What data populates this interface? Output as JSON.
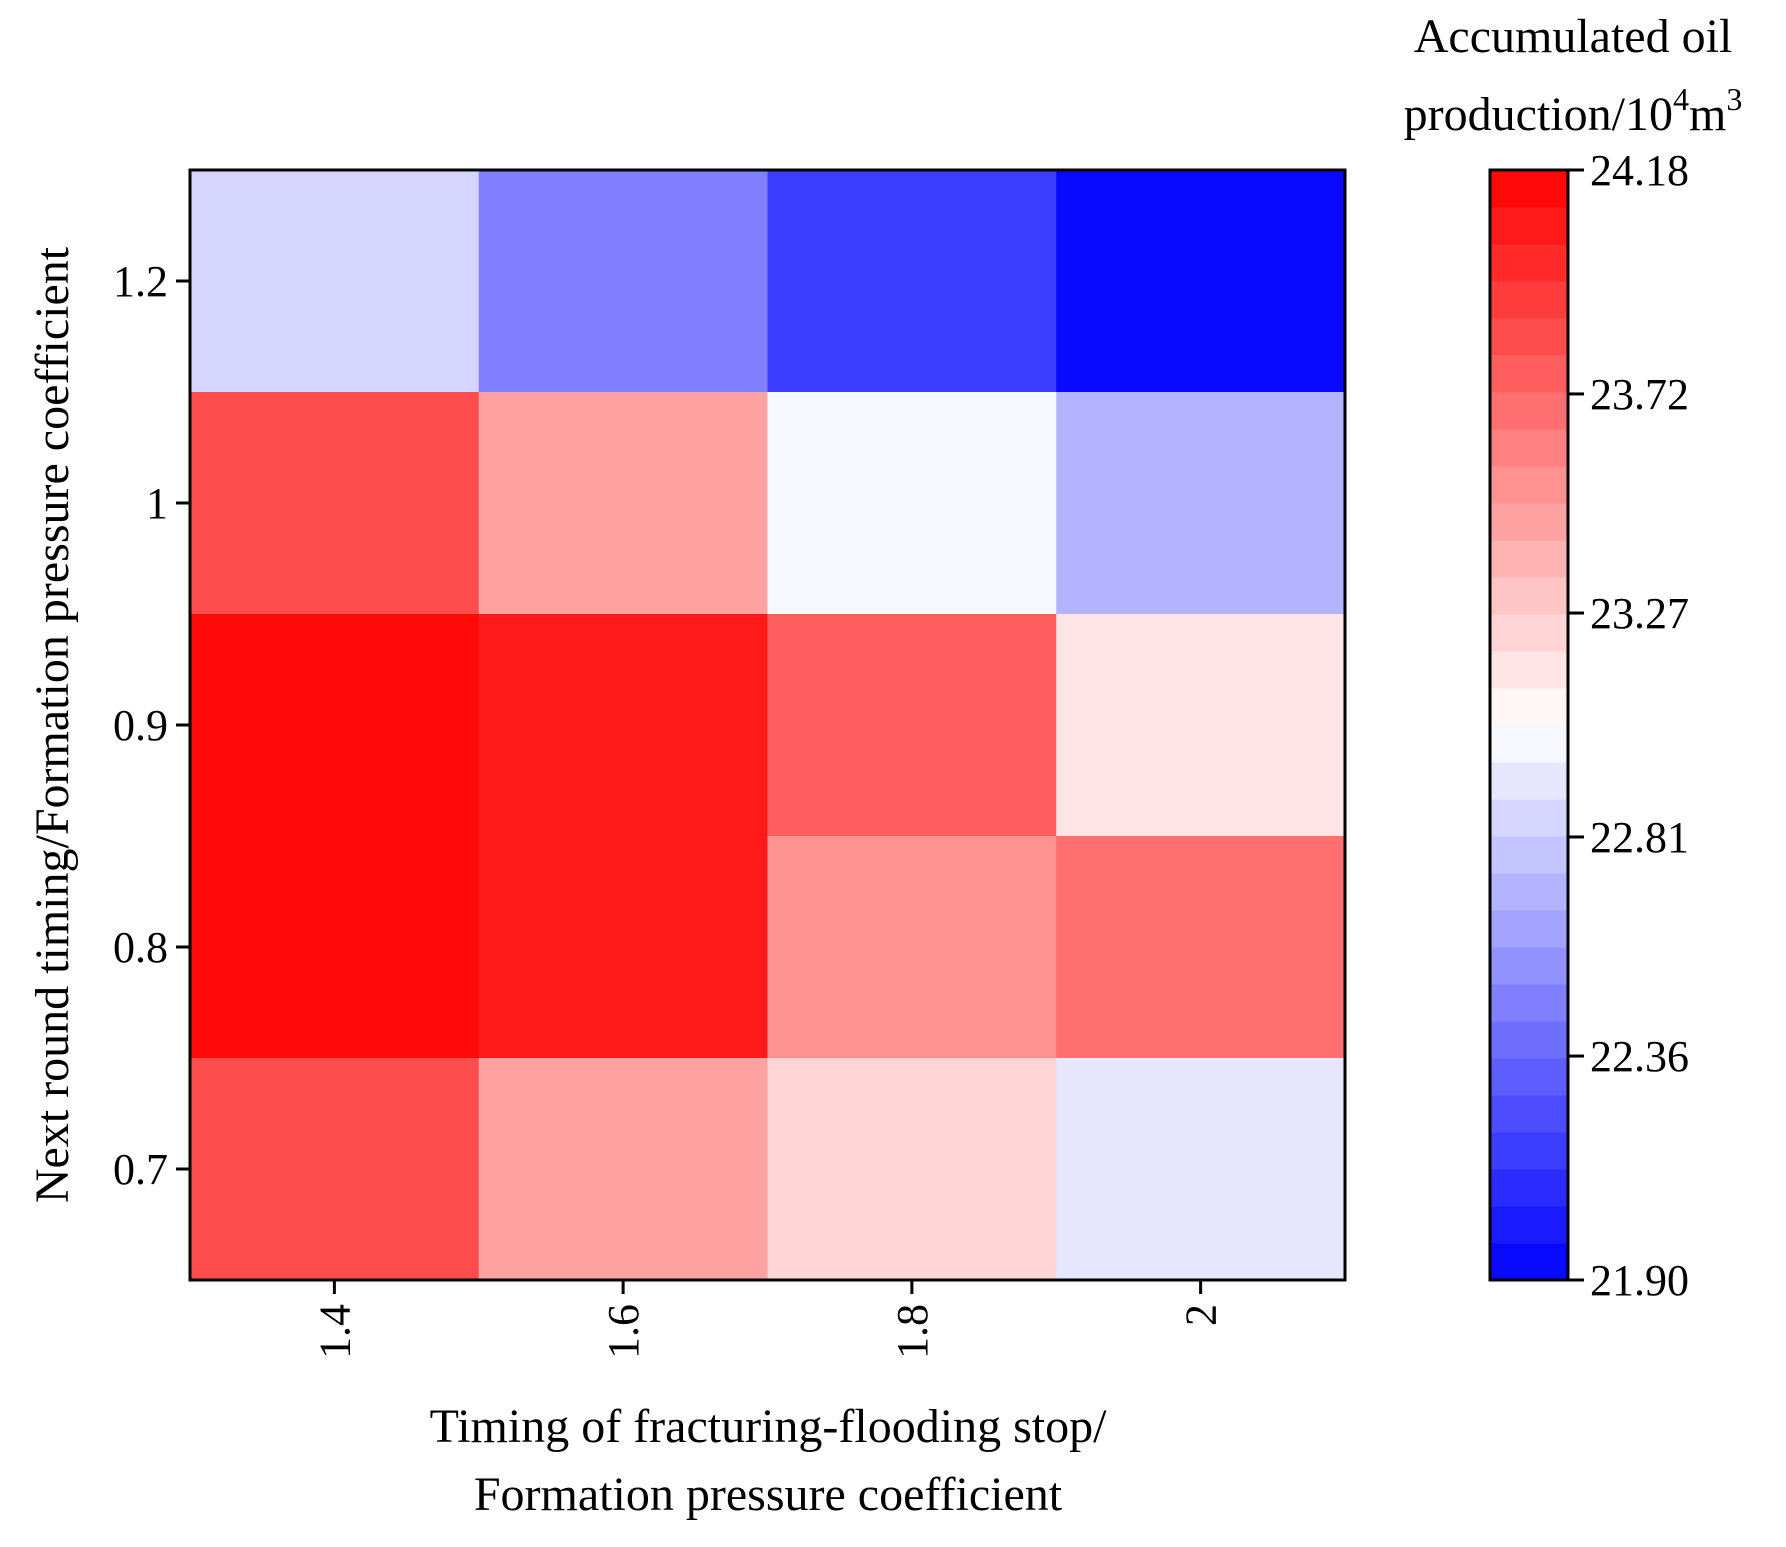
{
  "chart_data": {
    "type": "heatmap",
    "title": "",
    "xlabel_line1": "Timing of fracturing-flooding stop/",
    "xlabel_line2": "Formation pressure coefficient",
    "ylabel": "Next round timing/Formation pressure coefficient",
    "x_categories": [
      "1.4",
      "1.6",
      "1.8",
      "2"
    ],
    "y_categories": [
      "1.2",
      "1",
      "0.9",
      "0.8",
      "0.7"
    ],
    "values": [
      [
        22.86,
        22.46,
        22.14,
        21.9
      ],
      [
        23.82,
        23.42,
        23.0,
        22.72
      ],
      [
        24.18,
        24.06,
        23.76,
        23.12
      ],
      [
        24.18,
        24.06,
        23.5,
        23.68
      ],
      [
        23.82,
        23.48,
        23.2,
        22.92
      ]
    ],
    "colorbar": {
      "title_line1": "Accumulated oil",
      "title_line2_prefix": "production/10",
      "title_line2_sup1": "4",
      "title_line2_mid": "m",
      "title_line2_sup2": "3",
      "min": 21.9,
      "max": 24.18,
      "tick_labels": [
        "24.18",
        "23.72",
        "23.27",
        "22.81",
        "22.36",
        "21.90"
      ],
      "levels": 30,
      "low_color": "#0000ff",
      "mid_color": "#ffffff",
      "high_color": "#ff0000"
    }
  }
}
